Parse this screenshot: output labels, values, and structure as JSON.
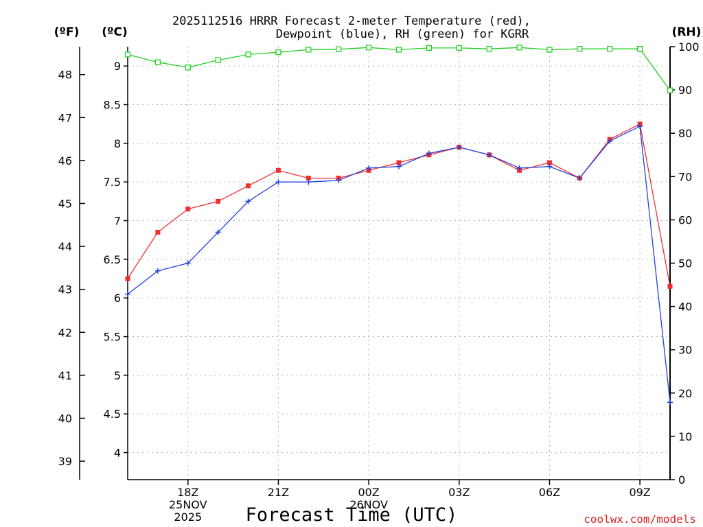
{
  "chart_data": {
    "type": "line",
    "title_line1": "2025112516 HRRR Forecast 2-meter Temperature (red),",
    "title_line2": "Dewpoint (blue), RH (green) for KGRR",
    "y_left_outer_label": "(ºF)",
    "y_left_inner_label": "(ºC)",
    "y_right_label": "(RH)",
    "xlabel": "Forecast Time (UTC)",
    "credit": "coolwx.com/models",
    "x_hours": [
      16,
      17,
      18,
      19,
      20,
      21,
      22,
      23,
      24,
      25,
      26,
      27,
      28,
      29,
      30,
      31,
      32,
      33,
      34
    ],
    "x_tick_hours": [
      18,
      21,
      24,
      27,
      30,
      33
    ],
    "x_tick_labels": [
      "18Z",
      "21Z",
      "00Z",
      "03Z",
      "06Z",
      "09Z"
    ],
    "x_date_labels": [
      {
        "hour": 18,
        "line1": "25NOV",
        "line2": "2025"
      },
      {
        "hour": 24,
        "line1": "26NOV",
        "line2": ""
      }
    ],
    "xlim": [
      16,
      34
    ],
    "ylim_celsius": [
      3.65,
      9.25
    ],
    "y_celsius_ticks": [
      4,
      4.5,
      5,
      5.5,
      6,
      6.5,
      7,
      7.5,
      8,
      8.5,
      9
    ],
    "y_fahrenheit_ticks": [
      39,
      40,
      41,
      42,
      43,
      44,
      45,
      46,
      47,
      48
    ],
    "ylim_rh": [
      0,
      100
    ],
    "y_rh_ticks": [
      0,
      10,
      20,
      30,
      40,
      50,
      60,
      70,
      80,
      90,
      100
    ],
    "series": [
      {
        "name": "Temperature",
        "axis": "celsius",
        "color": "#f03030",
        "marker": "filled-square",
        "values": [
          6.25,
          6.85,
          7.15,
          7.25,
          7.45,
          7.65,
          7.55,
          7.55,
          7.65,
          7.75,
          7.85,
          7.95,
          7.85,
          7.65,
          7.75,
          7.55,
          8.05,
          8.25,
          6.15
        ]
      },
      {
        "name": "Dewpoint",
        "axis": "celsius",
        "color": "#2040e0",
        "marker": "plus",
        "values": [
          6.05,
          6.35,
          6.45,
          6.85,
          7.25,
          7.5,
          7.5,
          7.52,
          7.68,
          7.7,
          7.87,
          7.95,
          7.85,
          7.68,
          7.7,
          7.55,
          8.03,
          8.22,
          4.65
        ]
      },
      {
        "name": "RH",
        "axis": "rh",
        "color": "#20d020",
        "marker": "open-square",
        "values": [
          98.2,
          96.4,
          95.2,
          96.9,
          98.2,
          98.7,
          99.3,
          99.4,
          99.8,
          99.3,
          99.7,
          99.7,
          99.5,
          99.8,
          99.3,
          99.5,
          99.5,
          99.5,
          89.9
        ]
      }
    ]
  }
}
